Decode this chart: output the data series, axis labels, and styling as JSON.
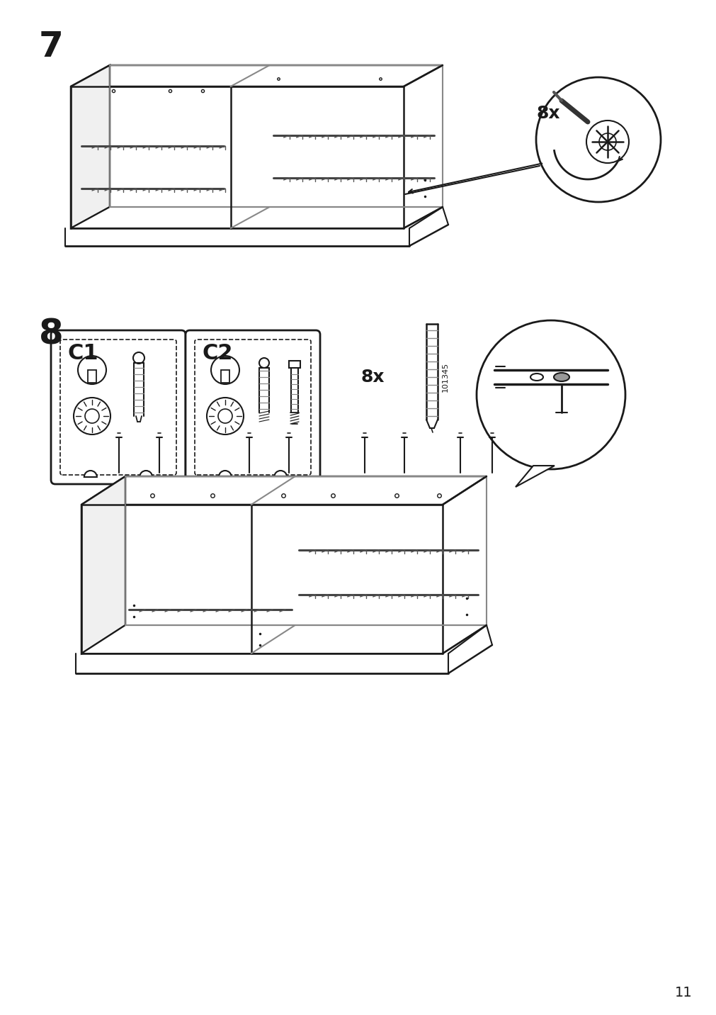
{
  "page_number": "11",
  "step7_label": "7",
  "step8_label": "8",
  "step7_8x": "8x",
  "step8_8x": "8x",
  "step8_part_code1": "101345",
  "bg_color": "#ffffff",
  "line_color": "#1a1a1a",
  "gray_color": "#888888",
  "light_gray": "#cccccc",
  "c1_label": "C1",
  "c2_label": "C2"
}
